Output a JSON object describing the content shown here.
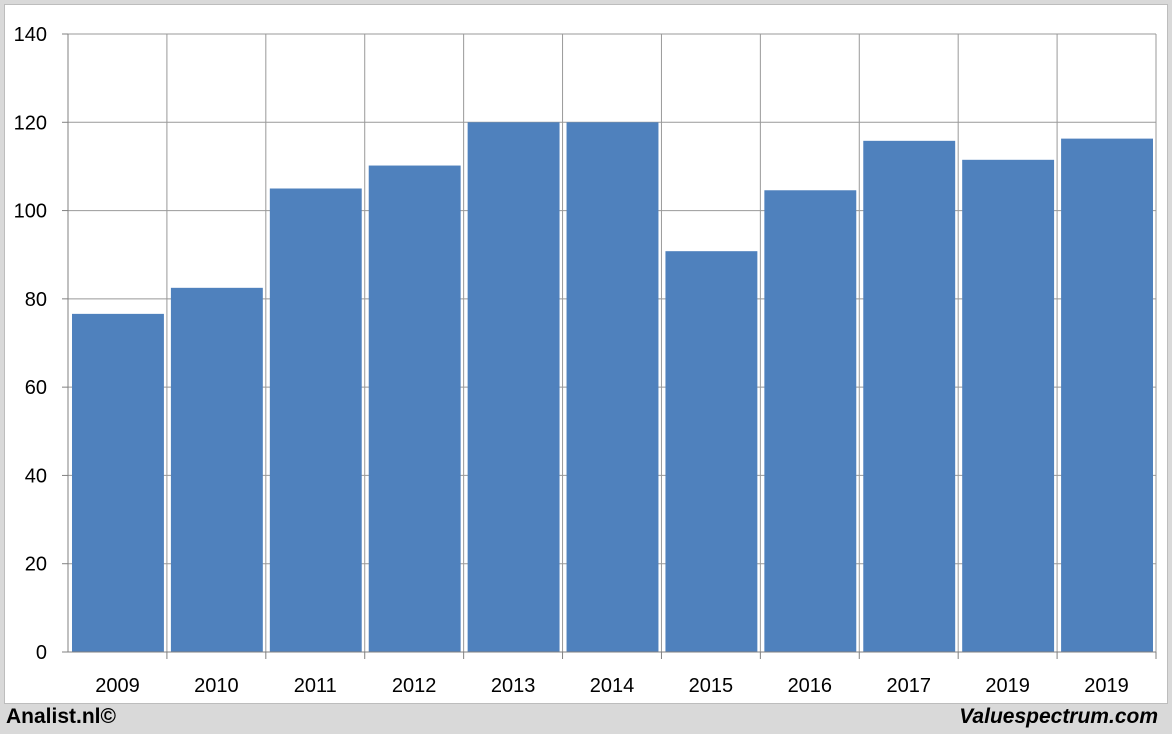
{
  "chart_data": {
    "type": "bar",
    "categories": [
      "2009",
      "2010",
      "2011",
      "2012",
      "2013",
      "2014",
      "2015",
      "2016",
      "2017",
      "2019",
      "2019"
    ],
    "values": [
      76.6,
      82.5,
      105,
      110.2,
      120,
      120,
      90.8,
      104.6,
      115.8,
      111.5,
      116.3
    ],
    "title": "",
    "xlabel": "",
    "ylabel": "",
    "ylim": [
      0,
      140
    ],
    "yticks": [
      0,
      20,
      40,
      60,
      80,
      100,
      120,
      140
    ],
    "grid": true,
    "bar_color": "#4f81bd",
    "grid_color": "#999999"
  },
  "footer": {
    "left": "Analist.nl©",
    "right": "Valuespectrum.com"
  }
}
